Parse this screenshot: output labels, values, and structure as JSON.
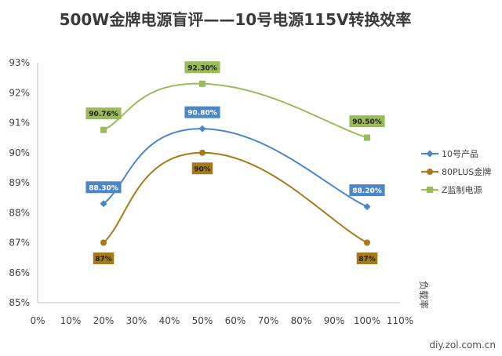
{
  "chart_data": {
    "type": "line",
    "title": "500W金牌电源盲评——10号电源115V转换效率",
    "xlabel": "负载率",
    "ylabel": "",
    "x_ticks": [
      "0%",
      "10%",
      "20%",
      "30%",
      "40%",
      "50%",
      "60%",
      "70%",
      "80%",
      "90%",
      "100%",
      "110%"
    ],
    "y_ticks": [
      "85%",
      "86%",
      "87%",
      "88%",
      "89%",
      "90%",
      "91%",
      "92%",
      "93%"
    ],
    "xlim": [
      0,
      110
    ],
    "ylim": [
      85,
      93
    ],
    "grid": false,
    "legend_position": "right",
    "smooth": true,
    "series": [
      {
        "name": "10号产品",
        "x": [
          20,
          50,
          100
        ],
        "values": [
          88.3,
          90.8,
          88.2
        ],
        "labels": [
          "88.30%",
          "90.80%",
          "88.20%"
        ],
        "color": "#4a86c8",
        "label_bg": "#4a86c8",
        "label_color": "#ffffff",
        "marker": "diamond",
        "label_pos": "above"
      },
      {
        "name": "80PLUS金牌",
        "x": [
          20,
          50,
          100
        ],
        "values": [
          87,
          90,
          87
        ],
        "labels": [
          "87%",
          "90%",
          "87%"
        ],
        "color": "#a67a1a",
        "label_bg": "#a67a1a",
        "label_color": "#222222",
        "marker": "circle",
        "label_pos": "below"
      },
      {
        "name": "Z监制电源",
        "x": [
          20,
          50,
          100
        ],
        "values": [
          90.76,
          92.3,
          90.5
        ],
        "labels": [
          "90.76%",
          "92.30%",
          "90.50%"
        ],
        "color": "#9bbb59",
        "label_bg": "#9bbb59",
        "label_color": "#222222",
        "marker": "square",
        "label_pos": "above"
      }
    ]
  },
  "watermark": "diy.zol.com.cn"
}
